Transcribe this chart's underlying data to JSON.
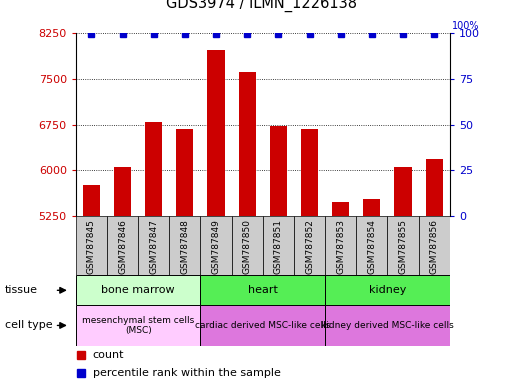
{
  "title": "GDS3974 / ILMN_1226138",
  "samples": [
    "GSM787845",
    "GSM787846",
    "GSM787847",
    "GSM787848",
    "GSM787849",
    "GSM787850",
    "GSM787851",
    "GSM787852",
    "GSM787853",
    "GSM787854",
    "GSM787855",
    "GSM787856"
  ],
  "counts": [
    5750,
    6050,
    6800,
    6680,
    7980,
    7620,
    6720,
    6680,
    5480,
    5530,
    6060,
    6180
  ],
  "ylim_left": [
    5250,
    8250
  ],
  "yticks_left": [
    5250,
    6000,
    6750,
    7500,
    8250
  ],
  "ylim_right": [
    0,
    100
  ],
  "yticks_right": [
    0,
    25,
    50,
    75,
    100
  ],
  "bar_color": "#cc0000",
  "marker_color": "#0000cc",
  "bar_width": 0.55,
  "tissues": [
    {
      "label": "bone marrow",
      "start": 0,
      "end": 4,
      "color": "#ccffcc"
    },
    {
      "label": "heart",
      "start": 4,
      "end": 8,
      "color": "#55ee55"
    },
    {
      "label": "kidney",
      "start": 8,
      "end": 12,
      "color": "#55ee55"
    }
  ],
  "cell_types": [
    {
      "label": "mesenchymal stem cells\n(MSC)",
      "start": 0,
      "end": 4,
      "color": "#ffccff"
    },
    {
      "label": "cardiac derived MSC-like cells",
      "start": 4,
      "end": 8,
      "color": "#ee88ee"
    },
    {
      "label": "kidney derived MSC-like cells",
      "start": 8,
      "end": 12,
      "color": "#ee88ee"
    }
  ],
  "tissue_row_label": "tissue",
  "cell_type_row_label": "cell type",
  "legend_count_label": "count",
  "legend_pct_label": "percentile rank within the sample",
  "tick_label_color_left": "#cc0000",
  "tick_label_color_right": "#0000cc",
  "sample_box_color": "#cccccc",
  "spine_color": "#000000"
}
